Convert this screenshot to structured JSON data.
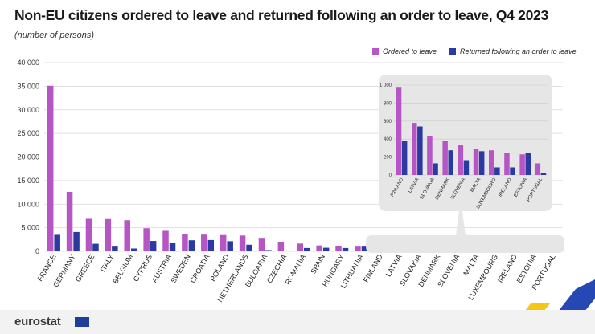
{
  "title": "Non-EU citizens ordered to leave and returned following an order to leave, Q4 2023",
  "subtitle": "(number of persons)",
  "brand": "eurostat",
  "colors": {
    "ordered": "#b656c4",
    "returned": "#2a3aa0",
    "inset_bg": "#e6e6e6",
    "grid": "#d8d8d8"
  },
  "chart_data": [
    {
      "type": "bar",
      "title": "",
      "xlabel": "",
      "ylabel": "",
      "ylim": [
        0,
        40000
      ],
      "yticks": [
        0,
        5000,
        10000,
        15000,
        20000,
        25000,
        30000,
        35000,
        40000
      ],
      "ytick_labels": [
        "0",
        "5 000",
        "10 000",
        "15 000",
        "20 000",
        "25 000",
        "30 000",
        "35 000",
        "40 000"
      ],
      "legend_position": "top-right",
      "grid": true,
      "categories": [
        "FRANCE",
        "GERMANY",
        "GREECE",
        "ITALY",
        "BELGIUM",
        "CYPRUS",
        "AUSTRIA",
        "SWEDEN",
        "CROATIA",
        "POLAND",
        "NETHERLANDS",
        "BULGARIA",
        "CZECHIA",
        "ROMANIA",
        "SPAIN",
        "HUNGARY",
        "LITHUANIA",
        "FINLAND",
        "LATVIA",
        "SLOVAKIA",
        "DENMARK",
        "SLOVENIA",
        "MALTA",
        "LUXEMBOURG",
        "IRELAND",
        "ESTONIA",
        "PORTUGAL"
      ],
      "series": [
        {
          "name": "Ordered to leave",
          "values": [
            35100,
            12600,
            6900,
            6850,
            6600,
            4900,
            4350,
            3700,
            3550,
            3450,
            3350,
            2700,
            1950,
            1650,
            1250,
            1150,
            1000,
            980,
            580,
            430,
            380,
            330,
            290,
            275,
            250,
            230,
            130
          ]
        },
        {
          "name": "Returned following an order to leave",
          "values": [
            3500,
            4100,
            1600,
            1000,
            600,
            2200,
            1700,
            2350,
            2400,
            2150,
            1400,
            270,
            170,
            700,
            750,
            700,
            1000,
            380,
            540,
            130,
            275,
            165,
            265,
            85,
            85,
            245,
            20
          ]
        }
      ]
    },
    {
      "type": "bar",
      "title": "",
      "ylim": [
        0,
        1000
      ],
      "yticks": [
        0,
        200,
        400,
        600,
        800,
        1000
      ],
      "ytick_labels": [
        "0",
        "200",
        "400",
        "600",
        "800",
        "1 000"
      ],
      "grid": true,
      "categories": [
        "FINLAND",
        "LATVIA",
        "SLOVAKIA",
        "DENMARK",
        "SLOVENIA",
        "MALTA",
        "LUXEMBOURG",
        "IRELAND",
        "ESTONIA",
        "PORTUGAL"
      ],
      "series": [
        {
          "name": "Ordered to leave",
          "values": [
            980,
            580,
            430,
            380,
            330,
            290,
            275,
            250,
            230,
            130
          ]
        },
        {
          "name": "Returned following an order to leave",
          "values": [
            380,
            540,
            130,
            275,
            165,
            265,
            85,
            85,
            245,
            20
          ]
        }
      ]
    }
  ]
}
